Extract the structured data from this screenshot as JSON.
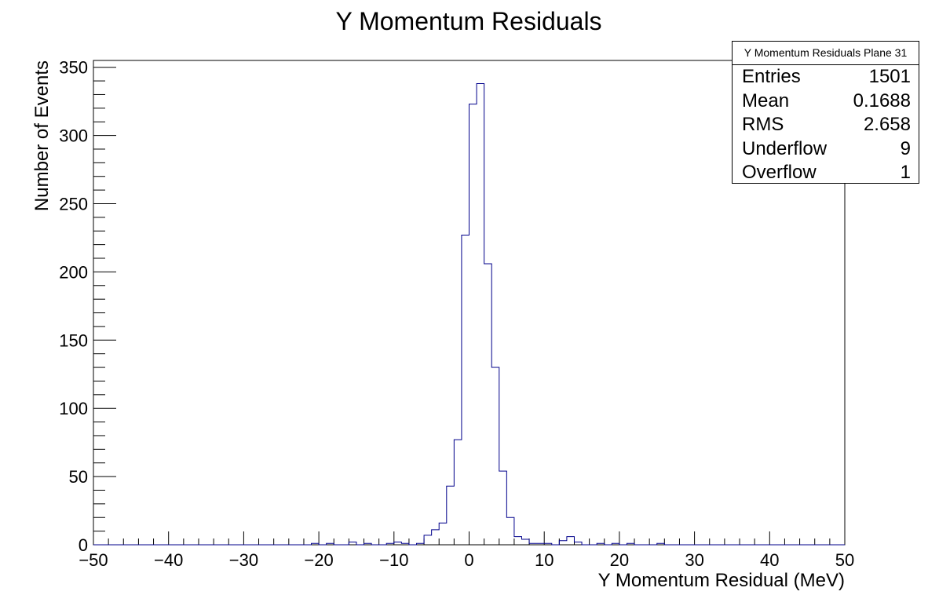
{
  "chart_data": {
    "type": "histogram",
    "title": "Y Momentum Residuals",
    "xlabel": "Y Momentum Residual (MeV)",
    "ylabel": "Number of Events",
    "xlim": [
      -50,
      50
    ],
    "ylim": [
      0,
      355
    ],
    "bin_width": 1,
    "xticks": [
      -50,
      -40,
      -30,
      -20,
      -10,
      0,
      10,
      20,
      30,
      40,
      50
    ],
    "yticks": [
      0,
      50,
      100,
      150,
      200,
      250,
      300,
      350
    ],
    "xtick_labels": [
      "−50",
      "−40",
      "−30",
      "−20",
      "−10",
      "0",
      "10",
      "20",
      "30",
      "40",
      "50"
    ],
    "ytick_labels": [
      "0",
      "50",
      "100",
      "150",
      "200",
      "250",
      "300",
      "350"
    ],
    "line_color": "#00008b",
    "bins": [
      {
        "x": -21,
        "y": 1
      },
      {
        "x": -19,
        "y": 1
      },
      {
        "x": -16,
        "y": 2
      },
      {
        "x": -14,
        "y": 1
      },
      {
        "x": -11,
        "y": 1
      },
      {
        "x": -10,
        "y": 2
      },
      {
        "x": -9,
        "y": 1
      },
      {
        "x": -7,
        "y": 1
      },
      {
        "x": -6,
        "y": 7
      },
      {
        "x": -5,
        "y": 11
      },
      {
        "x": -4,
        "y": 16
      },
      {
        "x": -3,
        "y": 43
      },
      {
        "x": -2,
        "y": 77
      },
      {
        "x": -1,
        "y": 227
      },
      {
        "x": 0,
        "y": 323
      },
      {
        "x": 1,
        "y": 338
      },
      {
        "x": 2,
        "y": 206
      },
      {
        "x": 3,
        "y": 130
      },
      {
        "x": 4,
        "y": 54
      },
      {
        "x": 5,
        "y": 20
      },
      {
        "x": 6,
        "y": 6
      },
      {
        "x": 7,
        "y": 4
      },
      {
        "x": 8,
        "y": 1
      },
      {
        "x": 9,
        "y": 1
      },
      {
        "x": 10,
        "y": 1
      },
      {
        "x": 12,
        "y": 3
      },
      {
        "x": 13,
        "y": 6
      },
      {
        "x": 14,
        "y": 2
      },
      {
        "x": 17,
        "y": 1
      },
      {
        "x": 19,
        "y": 1
      },
      {
        "x": 21,
        "y": 1
      },
      {
        "x": 25,
        "y": 1
      }
    ],
    "stats": {
      "title": "Y Momentum Residuals Plane 31",
      "rows": [
        {
          "label": "Entries",
          "value": "1501"
        },
        {
          "label": "Mean",
          "value": "0.1688"
        },
        {
          "label": "RMS",
          "value": "2.658"
        },
        {
          "label": "Underflow",
          "value": "9"
        },
        {
          "label": "Overflow",
          "value": "1"
        }
      ]
    }
  }
}
